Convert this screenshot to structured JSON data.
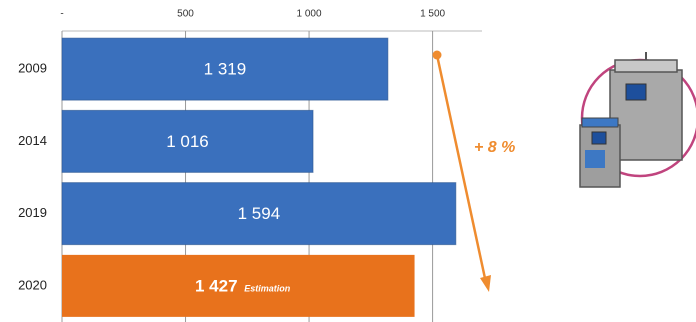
{
  "chart_data": {
    "type": "bar",
    "orientation": "horizontal",
    "categories": [
      "2009",
      "2014",
      "2019",
      "2020"
    ],
    "values": [
      1319,
      1016,
      1594,
      1427
    ],
    "value_labels": [
      "1 319",
      "1 016",
      "1 594",
      "1 427"
    ],
    "colors": [
      "#3a70bd",
      "#3a70bd",
      "#3a70bd",
      "#e8721c"
    ],
    "xlim": [
      0,
      1700
    ],
    "xticks": [
      {
        "value": 0,
        "label": "-"
      },
      {
        "value": 500,
        "label": "500"
      },
      {
        "value": 1000,
        "label": "1 000"
      },
      {
        "value": 1500,
        "label": "1 500"
      }
    ],
    "grid": true,
    "annotations": [
      "+ 8 %",
      "Estimation"
    ],
    "annotation_color": "#ef8c2f"
  }
}
